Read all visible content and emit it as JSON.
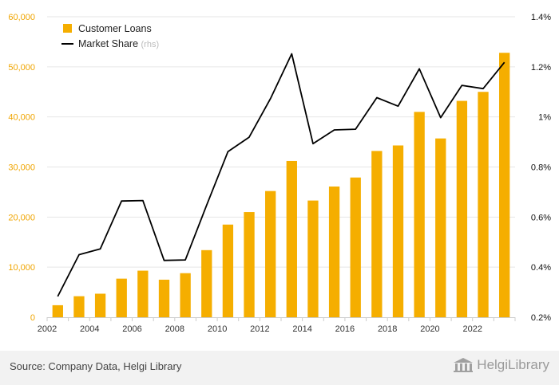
{
  "chart_data": {
    "type": "bar",
    "categories": [
      "2002",
      "2003",
      "2004",
      "2005",
      "2006",
      "2007",
      "2008",
      "2009",
      "2010",
      "2011",
      "2012",
      "2013",
      "2014",
      "2015",
      "2016",
      "2017",
      "2018",
      "2019",
      "2020",
      "2021",
      "2022",
      "2023"
    ],
    "series": [
      {
        "name": "Customer Loans",
        "type": "bar",
        "axis": "left",
        "color": "#f5ae00",
        "values": [
          2400,
          4200,
          4700,
          7700,
          9300,
          7500,
          8800,
          13400,
          18500,
          21000,
          25200,
          31200,
          23300,
          26100,
          27900,
          33200,
          34300,
          41000,
          35700,
          43200,
          45000,
          52800
        ]
      },
      {
        "name": "Market Share",
        "name_suffix": "(rhs)",
        "type": "line",
        "axis": "right",
        "color": "#000000",
        "values": [
          0.283,
          0.45,
          0.473,
          0.664,
          0.666,
          0.427,
          0.429,
          0.648,
          0.861,
          0.919,
          1.073,
          1.252,
          0.893,
          0.948,
          0.951,
          1.077,
          1.043,
          1.192,
          0.997,
          1.126,
          1.113,
          1.218
        ]
      }
    ],
    "ylim": [
      0,
      60000
    ],
    "y2lim": [
      0.2,
      1.4
    ],
    "yticks": [
      "0",
      "10,000",
      "20,000",
      "30,000",
      "40,000",
      "50,000",
      "60,000"
    ],
    "y2ticks": [
      "0.2%",
      "0.4%",
      "0.6%",
      "0.8%",
      "1%",
      "1.2%",
      "1.4%"
    ],
    "xticks": [
      "2002",
      "2004",
      "2006",
      "2008",
      "2010",
      "2012",
      "2014",
      "2016",
      "2018",
      "2020",
      "2022"
    ],
    "legend_position": "top-left",
    "grid": "horizontal"
  },
  "footer": {
    "source": "Source: Company Data, Helgi Library",
    "logo": "HelgiLibrary",
    "logo_icon": "library-columns-icon"
  }
}
